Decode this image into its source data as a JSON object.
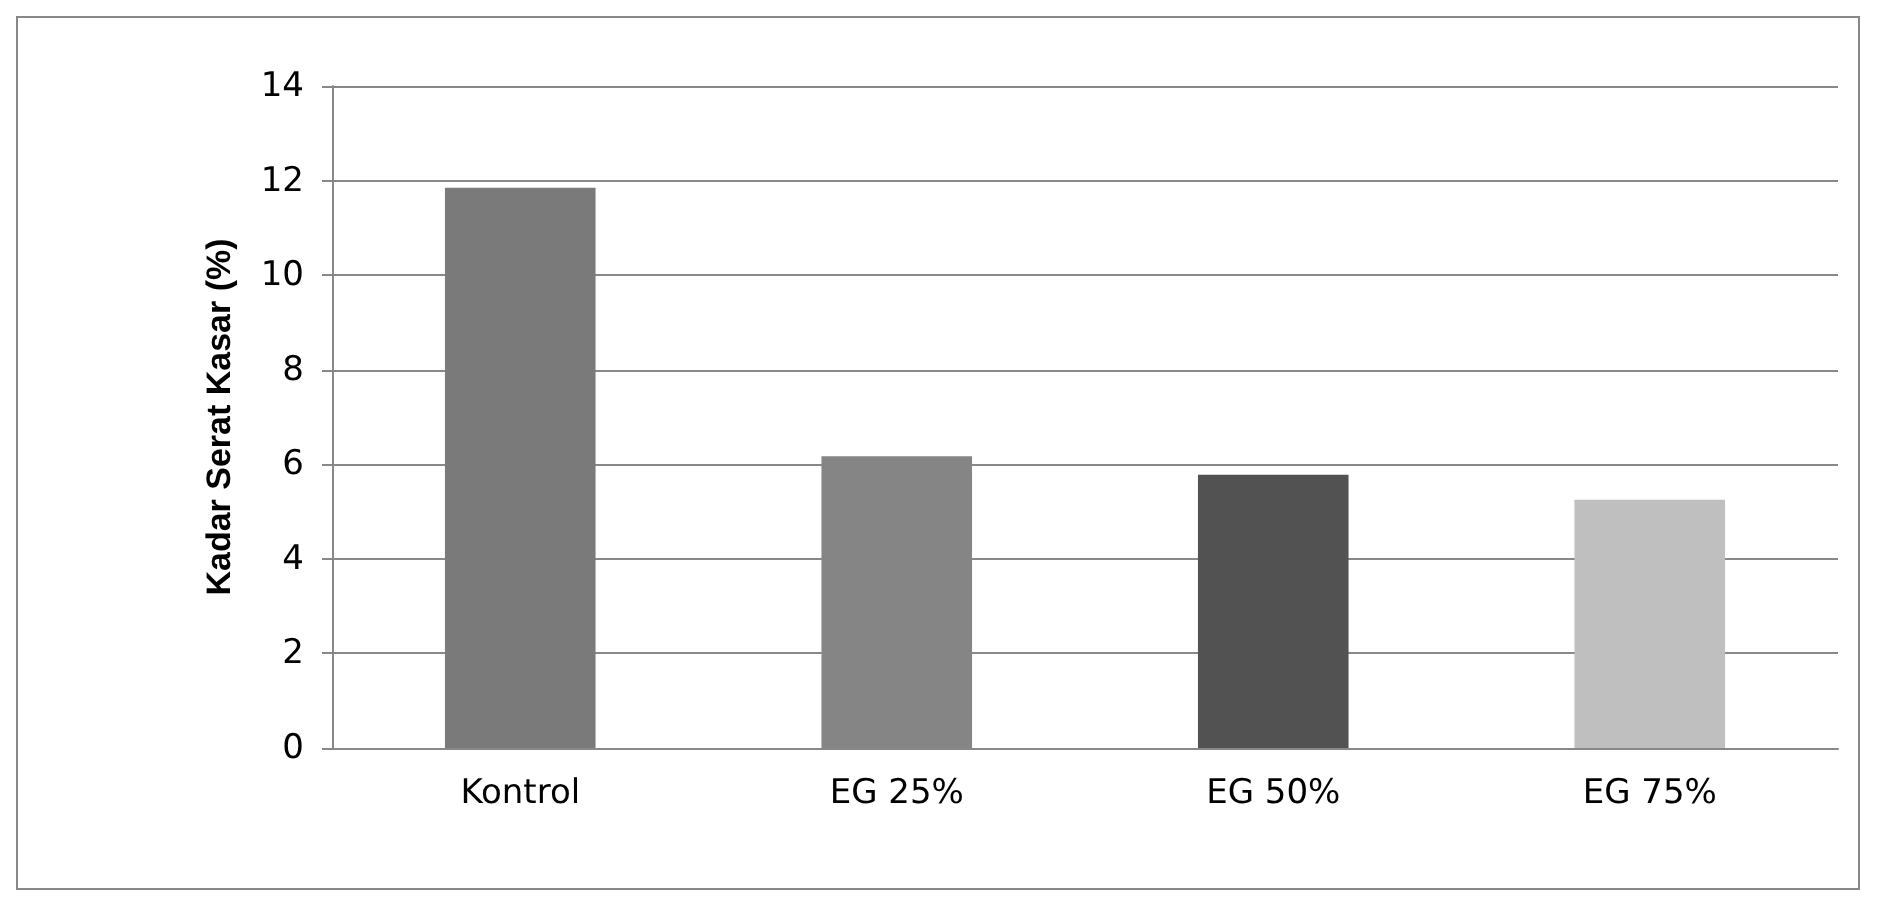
{
  "chart_data": {
    "type": "bar",
    "ylabel": "Kadar Serat Kasar (%)",
    "categories": [
      "Kontrol",
      "EG 25%",
      "EG 50%",
      "EG 75%"
    ],
    "values": [
      11.85,
      6.17,
      5.78,
      5.25
    ],
    "colors": [
      "#7a7a7a",
      "#858585",
      "#525252",
      "#bfbfbf"
    ],
    "ylim": [
      0,
      14
    ],
    "yticks": [
      0,
      2,
      4,
      6,
      8,
      10,
      12,
      14
    ],
    "grid": "y"
  }
}
